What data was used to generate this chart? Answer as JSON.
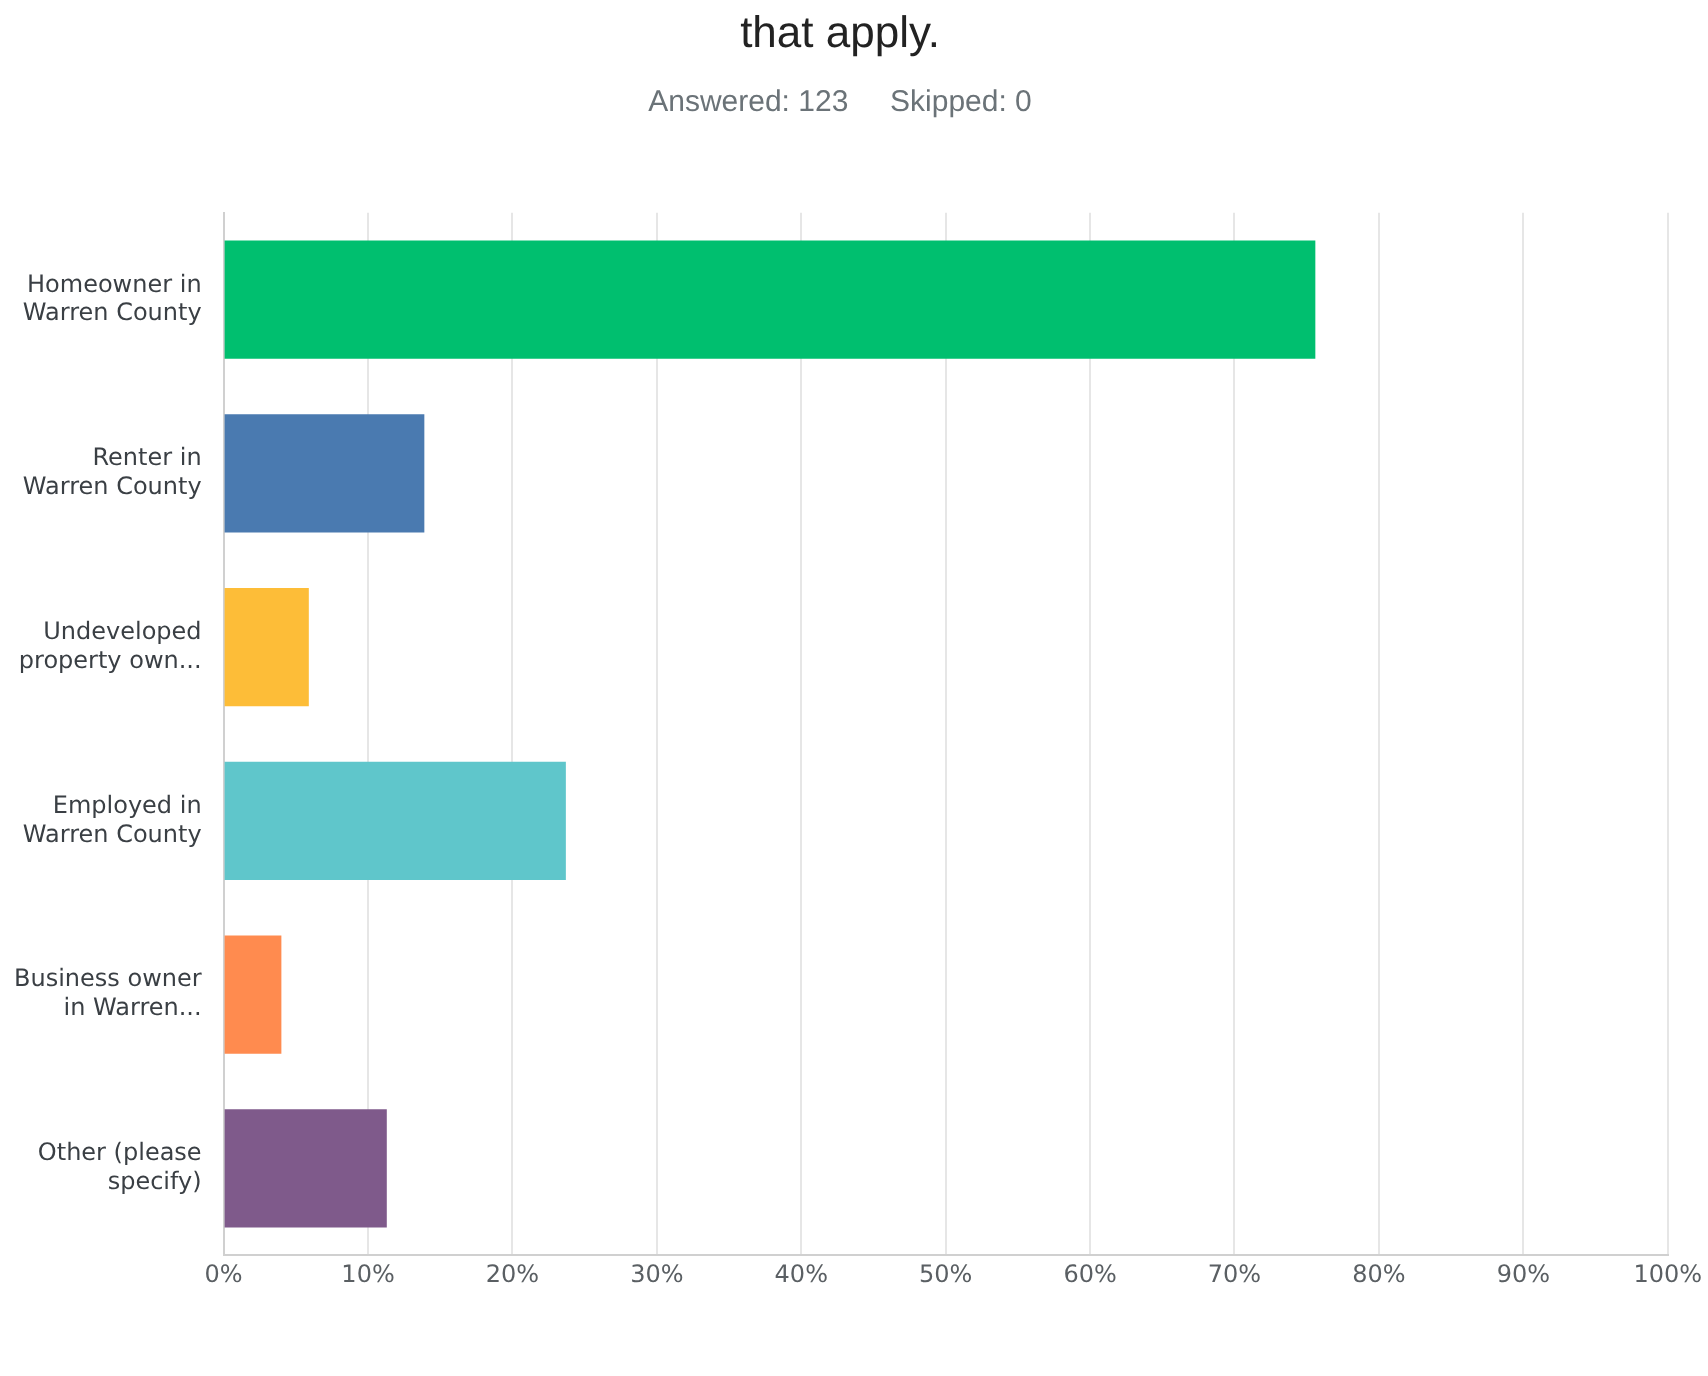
{
  "chart_data": {
    "type": "bar",
    "orientation": "horizontal",
    "title": "that apply.",
    "subtitle": "Answered: 123     Skipped: 0",
    "categories": [
      "Homeowner in Warren County",
      "Renter in Warren County",
      "Undeveloped property own...",
      "Employed in Warren County",
      "Business owner in Warren...",
      "Other (please specify)"
    ],
    "values": [
      75.6,
      13.9,
      5.9,
      23.7,
      4.0,
      11.3
    ],
    "colors": [
      "#00bf6f",
      "#4a7ab0",
      "#fdbd38",
      "#5fc6cb",
      "#ff8b4f",
      "#7f5a8b"
    ],
    "xlim": [
      0,
      100
    ],
    "xticks": [
      {
        "value": 0,
        "label": "0%"
      },
      {
        "value": 10,
        "label": "10%"
      },
      {
        "value": 20,
        "label": "20%"
      },
      {
        "value": 30,
        "label": "30%"
      },
      {
        "value": 40,
        "label": "40%"
      },
      {
        "value": 50,
        "label": "50%"
      },
      {
        "value": 60,
        "label": "60%"
      },
      {
        "value": 70,
        "label": "70%"
      },
      {
        "value": 80,
        "label": "80%"
      },
      {
        "value": 90,
        "label": "90%"
      },
      {
        "value": 100,
        "label": "100%"
      }
    ],
    "grid": "x"
  }
}
